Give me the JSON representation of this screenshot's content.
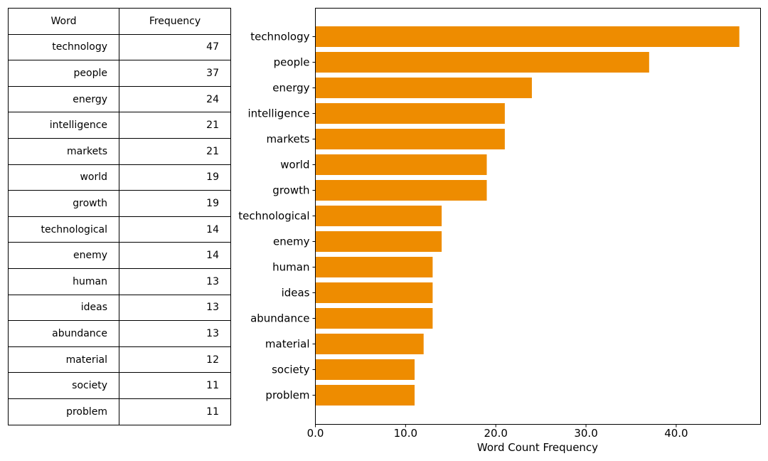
{
  "table": {
    "headers": [
      "Word",
      "Frequency"
    ],
    "rows": [
      [
        "technology",
        "47"
      ],
      [
        "people",
        "37"
      ],
      [
        "energy",
        "24"
      ],
      [
        "intelligence",
        "21"
      ],
      [
        "markets",
        "21"
      ],
      [
        "world",
        "19"
      ],
      [
        "growth",
        "19"
      ],
      [
        "technological",
        "14"
      ],
      [
        "enemy",
        "14"
      ],
      [
        "human",
        "13"
      ],
      [
        "ideas",
        "13"
      ],
      [
        "abundance",
        "13"
      ],
      [
        "material",
        "12"
      ],
      [
        "society",
        "11"
      ],
      [
        "problem",
        "11"
      ]
    ]
  },
  "chart_data": {
    "type": "bar",
    "orientation": "horizontal",
    "categories": [
      "technology",
      "people",
      "energy",
      "intelligence",
      "markets",
      "world",
      "growth",
      "technological",
      "enemy",
      "human",
      "ideas",
      "abundance",
      "material",
      "society",
      "problem"
    ],
    "values": [
      47,
      37,
      24,
      21,
      21,
      19,
      19,
      14,
      14,
      13,
      13,
      13,
      12,
      11,
      11
    ],
    "xlabel": "Word Count Frequency",
    "ylabel": "",
    "title": "",
    "xlim": [
      0,
      49.35
    ],
    "xticks": [
      "0.0",
      "10.0",
      "20.0",
      "30.0",
      "40.0"
    ],
    "bar_color": "#ee8c00",
    "grid": false
  }
}
